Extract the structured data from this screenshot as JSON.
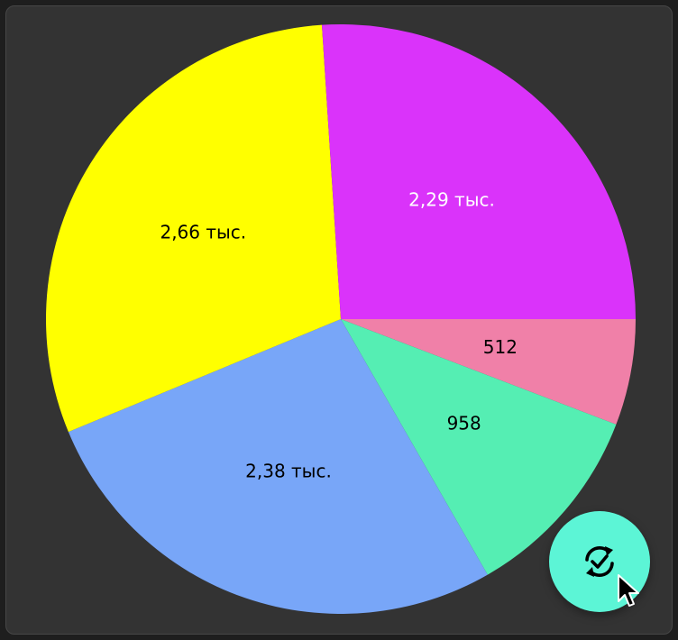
{
  "chart_data": {
    "type": "pie",
    "title": "",
    "start_angle_deg": 90,
    "direction": "clockwise",
    "slices": [
      {
        "value": 512,
        "label": "512",
        "color": "#f080a8",
        "label_color": "#000000"
      },
      {
        "value": 958,
        "label": "958",
        "color": "#55eeb3",
        "label_color": "#000000"
      },
      {
        "value": 2380,
        "label": "2,38 тыс.",
        "color": "#78a6f8",
        "label_color": "#000000"
      },
      {
        "value": 2660,
        "label": "2,66 тыс.",
        "color": "#ffff00",
        "label_color": "#000000"
      },
      {
        "value": 2290,
        "label": "2,29 тыс.",
        "color": "#da33fa",
        "label_color": "#ffffff"
      }
    ]
  },
  "fab": {
    "icon": "sync-check-icon",
    "color": "#5cf5d6"
  },
  "colors": {
    "background": "#333333",
    "outer": "#1e1e1e"
  }
}
